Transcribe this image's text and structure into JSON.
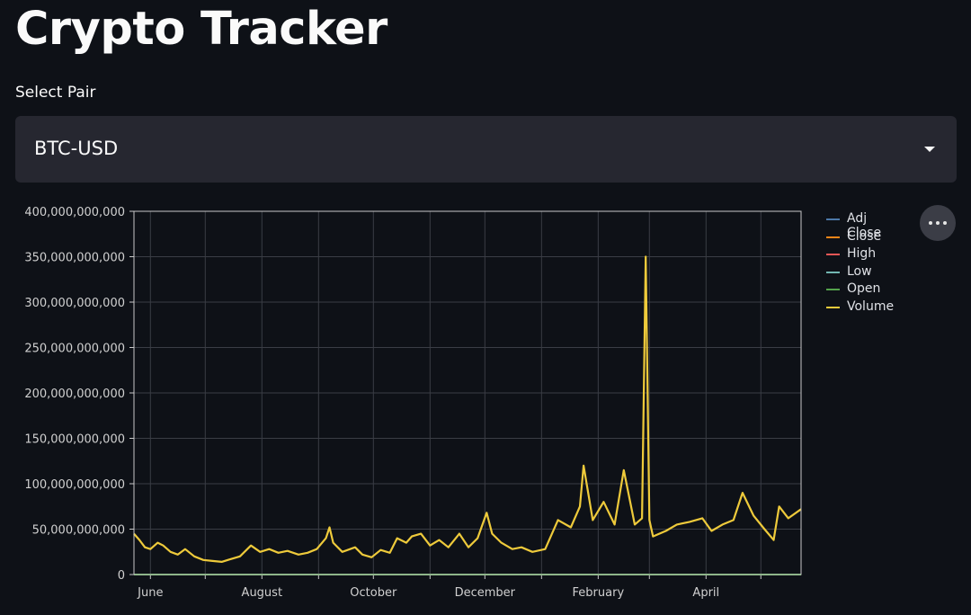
{
  "page": {
    "title": "Crypto Tracker"
  },
  "selector": {
    "label": "Select Pair",
    "value": "BTC-USD"
  },
  "colors": {
    "background": "#0e1117",
    "plot_background": "#0e1117",
    "grid": "#3a3d45",
    "axis": "#c8c8c8",
    "Adj Close": "#4c78a8",
    "Close": "#f58518",
    "High": "#e45756",
    "Low": "#72b7b2",
    "Open": "#54a24b",
    "Volume": "#eeca3b"
  },
  "chart_data": {
    "type": "line",
    "title": "",
    "xlabel": "",
    "ylabel": "",
    "ylim": [
      0,
      400000000000
    ],
    "y_ticks": [
      0,
      50000000000,
      100000000000,
      150000000000,
      200000000000,
      250000000000,
      300000000000,
      350000000000,
      400000000000
    ],
    "y_tick_labels": [
      "0",
      "50,000,000,000",
      "100,000,000,000",
      "150,000,000,000",
      "200,000,000,000",
      "250,000,000,000",
      "300,000,000,000",
      "350,000,000,000",
      "400,000,000,000"
    ],
    "x_range": [
      "2021-05-23",
      "2022-05-23"
    ],
    "x_ticks": [
      "2021-06-01",
      "2021-07-01",
      "2021-08-01",
      "2021-09-01",
      "2021-10-01",
      "2021-11-01",
      "2021-12-01",
      "2022-01-01",
      "2022-02-01",
      "2022-03-01",
      "2022-04-01",
      "2022-05-01"
    ],
    "x_tick_labels": [
      "June",
      "",
      "August",
      "",
      "October",
      "",
      "December",
      "",
      "February",
      "",
      "April",
      ""
    ],
    "grid": true,
    "legend_position": "right",
    "legend": [
      "Adj Close",
      "Close",
      "High",
      "Low",
      "Open",
      "Volume"
    ],
    "series": [
      {
        "name": "Adj Close",
        "x": [
          "2021-05-23",
          "2021-08-01",
          "2021-11-08",
          "2022-02-01",
          "2022-05-23"
        ],
        "values": [
          34000,
          39000,
          67000,
          38000,
          30000
        ]
      },
      {
        "name": "Close",
        "x": [
          "2021-05-23",
          "2021-08-01",
          "2021-11-08",
          "2022-02-01",
          "2022-05-23"
        ],
        "values": [
          34000,
          39000,
          67000,
          38000,
          30000
        ]
      },
      {
        "name": "High",
        "x": [
          "2021-05-23",
          "2021-08-01",
          "2021-11-08",
          "2022-02-01",
          "2022-05-23"
        ],
        "values": [
          36000,
          40000,
          68000,
          39000,
          31000
        ]
      },
      {
        "name": "Low",
        "x": [
          "2021-05-23",
          "2021-08-01",
          "2021-11-08",
          "2022-02-01",
          "2022-05-23"
        ],
        "values": [
          32000,
          38000,
          66000,
          37000,
          29000
        ]
      },
      {
        "name": "Open",
        "x": [
          "2021-05-23",
          "2021-08-01",
          "2021-11-08",
          "2022-02-01",
          "2022-05-23"
        ],
        "values": [
          33000,
          39500,
          66500,
          38500,
          30500
        ]
      },
      {
        "name": "Volume",
        "x": [
          "2021-05-23",
          "2021-05-26",
          "2021-05-29",
          "2021-06-01",
          "2021-06-05",
          "2021-06-08",
          "2021-06-12",
          "2021-06-16",
          "2021-06-20",
          "2021-06-25",
          "2021-06-30",
          "2021-07-05",
          "2021-07-10",
          "2021-07-15",
          "2021-07-20",
          "2021-07-26",
          "2021-07-31",
          "2021-08-05",
          "2021-08-10",
          "2021-08-15",
          "2021-08-21",
          "2021-08-26",
          "2021-08-31",
          "2021-09-05",
          "2021-09-07",
          "2021-09-09",
          "2021-09-14",
          "2021-09-21",
          "2021-09-25",
          "2021-09-30",
          "2021-10-05",
          "2021-10-10",
          "2021-10-14",
          "2021-10-19",
          "2021-10-22",
          "2021-10-27",
          "2021-11-01",
          "2021-11-06",
          "2021-11-11",
          "2021-11-17",
          "2021-11-22",
          "2021-11-27",
          "2021-12-02",
          "2021-12-05",
          "2021-12-10",
          "2021-12-16",
          "2021-12-21",
          "2021-12-27",
          "2022-01-03",
          "2022-01-10",
          "2022-01-17",
          "2022-01-22",
          "2022-01-24",
          "2022-01-29",
          "2022-02-04",
          "2022-02-10",
          "2022-02-15",
          "2022-02-21",
          "2022-02-25",
          "2022-02-27",
          "2022-03-01",
          "2022-03-03",
          "2022-03-10",
          "2022-03-16",
          "2022-03-23",
          "2022-03-30",
          "2022-04-04",
          "2022-04-10",
          "2022-04-16",
          "2022-04-21",
          "2022-04-27",
          "2022-05-03",
          "2022-05-08",
          "2022-05-11",
          "2022-05-16",
          "2022-05-23"
        ],
        "values": [
          45000000000,
          38000000000,
          30000000000,
          28000000000,
          35000000000,
          32000000000,
          25000000000,
          22000000000,
          28000000000,
          20000000000,
          16000000000,
          15000000000,
          14000000000,
          17000000000,
          20000000000,
          32000000000,
          25000000000,
          28000000000,
          24000000000,
          26000000000,
          22000000000,
          24000000000,
          28000000000,
          40000000000,
          52000000000,
          35000000000,
          25000000000,
          30000000000,
          22000000000,
          19000000000,
          27000000000,
          24000000000,
          40000000000,
          35000000000,
          42000000000,
          45000000000,
          32000000000,
          38000000000,
          30000000000,
          45000000000,
          30000000000,
          40000000000,
          68000000000,
          45000000000,
          35000000000,
          28000000000,
          30000000000,
          25000000000,
          28000000000,
          60000000000,
          52000000000,
          75000000000,
          120000000000,
          60000000000,
          80000000000,
          55000000000,
          115000000000,
          55000000000,
          62000000000,
          350000000000,
          60000000000,
          42000000000,
          48000000000,
          55000000000,
          58000000000,
          62000000000,
          48000000000,
          55000000000,
          60000000000,
          90000000000,
          65000000000,
          50000000000,
          38000000000,
          75000000000,
          62000000000,
          72000000000
        ]
      }
    ]
  }
}
